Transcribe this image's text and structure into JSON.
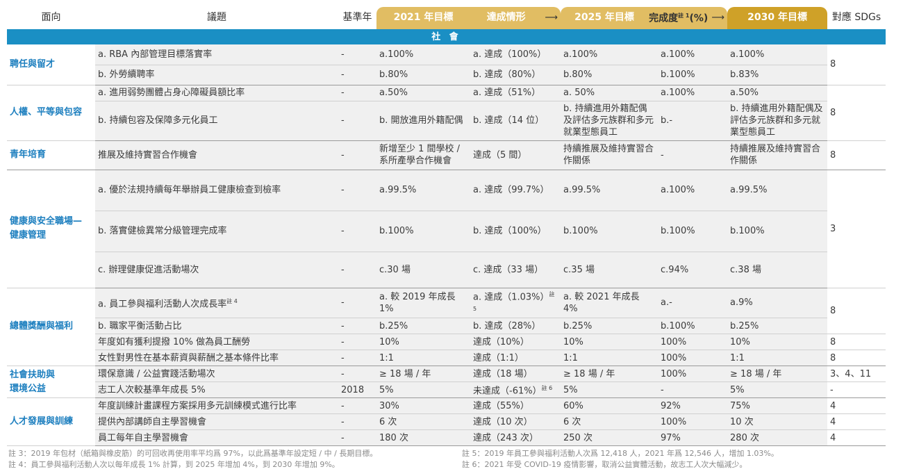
{
  "header": {
    "c1": "面向",
    "c2": "議題",
    "c3": "基準年",
    "y2021": "2021 年目標",
    "status": "達成情形",
    "y2025": "2025 年目標",
    "completion": "完成度",
    "completion_note": "註 1",
    "completion_unit": "(%)",
    "y2030": "2030 年目標",
    "sdg": "對應 SDGs"
  },
  "section": "社 會",
  "cats": {
    "c1": "聘任與留才",
    "c2": "人權、平等與包容",
    "c3": "青年培育",
    "c4a": "健康與安全職場—",
    "c4b": "健康管理",
    "c5": "總體獎酬與福利",
    "c6a": "社會扶助與",
    "c6b": "環境公益",
    "c7": "人才發展與訓練"
  },
  "rows": [
    {
      "issue": "a. RBA 內部管理目標落實率",
      "base": "-",
      "t21": "a.100%",
      "st": "a. 達成（100%）",
      "t25": "a.100%",
      "cp": "a.100%",
      "t30": "a.100%"
    },
    {
      "issue": "b. 外勞續聘率",
      "base": "-",
      "t21": "b.80%",
      "st": "b. 達成（80%）",
      "t25": "b.80%",
      "cp": "b.100%",
      "t30": "b.83%"
    },
    {
      "issue": "a. 進用弱勢團體占身心障礙員額比率",
      "base": "-",
      "t21": "a.50%",
      "st": "a. 達成（51%）",
      "t25": "a. 50%",
      "cp": "a.100%",
      "t30": "a.50%"
    },
    {
      "issue": "b. 持續包容及保障多元化員工",
      "base": "-",
      "t21": "b. 開放進用外籍配偶",
      "st": "b. 達成（14 位）",
      "t25": "b. 持續進用外籍配偶及評估多元族群和多元就業型態員工",
      "cp": "b.-",
      "t30": "b. 持續進用外籍配偶及評估多元族群和多元就業型態員工"
    },
    {
      "issue": "推展及維持實習合作機會",
      "base": "-",
      "t21": "新增至少 1 間學校 / 系所產學合作機會",
      "st": "達成（5 間）",
      "t25": "持續推展及維持實習合作關係",
      "cp": "-",
      "t30": "持續推展及維持實習合作關係"
    },
    {
      "issue": "a. 優於法規持續每年舉辦員工健康檢查到檢率",
      "base": "-",
      "t21": "a.99.5%",
      "st": "a. 達成（99.7%）",
      "t25": "a.99.5%",
      "cp": "a.100%",
      "t30": "a.99.5%"
    },
    {
      "issue": "b. 落實健檢異常分級管理完成率",
      "base": "-",
      "t21": "b.100%",
      "st": "b. 達成（100%）",
      "t25": "b.100%",
      "cp": "b.100%",
      "t30": "b.100%"
    },
    {
      "issue": "c. 辦理健康促進活動場次",
      "base": "-",
      "t21": "c.30 場",
      "st": "c. 達成（33 場）",
      "t25": "c.35 場",
      "cp": "c.94%",
      "t30": "c.38 場"
    },
    {
      "issue": "a. 員工參與福利活動人次成長率",
      "note": "註 4",
      "base": "-",
      "t21": "a. 較 2019 年成長 1%",
      "st": "a. 達成（1.03%）",
      "stnote": "註 5",
      "t25": "a. 較 2021 年成長 4%",
      "cp": "a.-",
      "t30": "a.9%"
    },
    {
      "issue": "b. 職家平衡活動占比",
      "base": "-",
      "t21": "b.25%",
      "st": "b. 達成（28%）",
      "t25": "b.25%",
      "cp": "b.100%",
      "t30": "b.25%"
    },
    {
      "issue": "年度如有獲利提撥 10% 做為員工酬勞",
      "base": "-",
      "t21": "10%",
      "st": "達成（10%）",
      "t25": "10%",
      "cp": "100%",
      "t30": "10%"
    },
    {
      "issue": "女性對男性在基本薪資與薪酬之基本條件比率",
      "base": "-",
      "t21": "1:1",
      "st": "達成（1:1）",
      "t25": "1:1",
      "cp": "100%",
      "t30": "1:1"
    },
    {
      "issue": "環保意識 / 公益實踐活動場次",
      "base": "-",
      "t21": "≥ 18 場 / 年",
      "st": "達成（18 場）",
      "t25": "≥ 18 場 / 年",
      "cp": "100%",
      "t30": "≥ 18 場 / 年"
    },
    {
      "issue": "志工人次較基準年成長 5%",
      "base": "2018",
      "t21": "5%",
      "st": "未達成（-61%）",
      "stnote": "註 6",
      "t25": "5%",
      "cp": "-",
      "t30": "5%"
    },
    {
      "issue": "年度訓練計畫課程方案採用多元訓練模式進行比率",
      "base": "-",
      "t21": "30%",
      "st": "達成（55%）",
      "t25": "60%",
      "cp": "92%",
      "t30": "75%"
    },
    {
      "issue": "提供內部講師自主學習機會",
      "base": "-",
      "t21": "6 次",
      "st": "達成（10 次）",
      "t25": "6 次",
      "cp": "100%",
      "t30": "10 次"
    },
    {
      "issue": "員工每年自主學習機會",
      "base": "-",
      "t21": "180 次",
      "st": "達成（243 次）",
      "t25": "250 次",
      "cp": "97%",
      "t30": "280 次"
    }
  ],
  "sdg": {
    "s1": "8",
    "s2": "8",
    "s3": "8",
    "s4": "3",
    "s5": "8",
    "s6": "8",
    "s7": "8",
    "s8": "3、4、11",
    "s9": "-",
    "s10": "4",
    "s11": "4",
    "s12": "4"
  },
  "notes": {
    "n3": "註 3：2019 年包材（紙箱與橡皮筋）的可回收再使用率平均爲 97%，以此爲基準年設定短 / 中 / 長期目標。",
    "n4": "註 4：員工參與福利活動人次以每年成長 1% 計算，到 2025 年增加 4%，到 2030 年增加 9%。",
    "n5": "註 5：2019 年員工參與福利活動人次爲 12,418 人，2021 年爲 12,546 人，增加 1.03%。",
    "n6": "註 6：2021 年受 COVID-19 疫情影響，取消公益實體活動，故志工人次大幅減少。"
  }
}
